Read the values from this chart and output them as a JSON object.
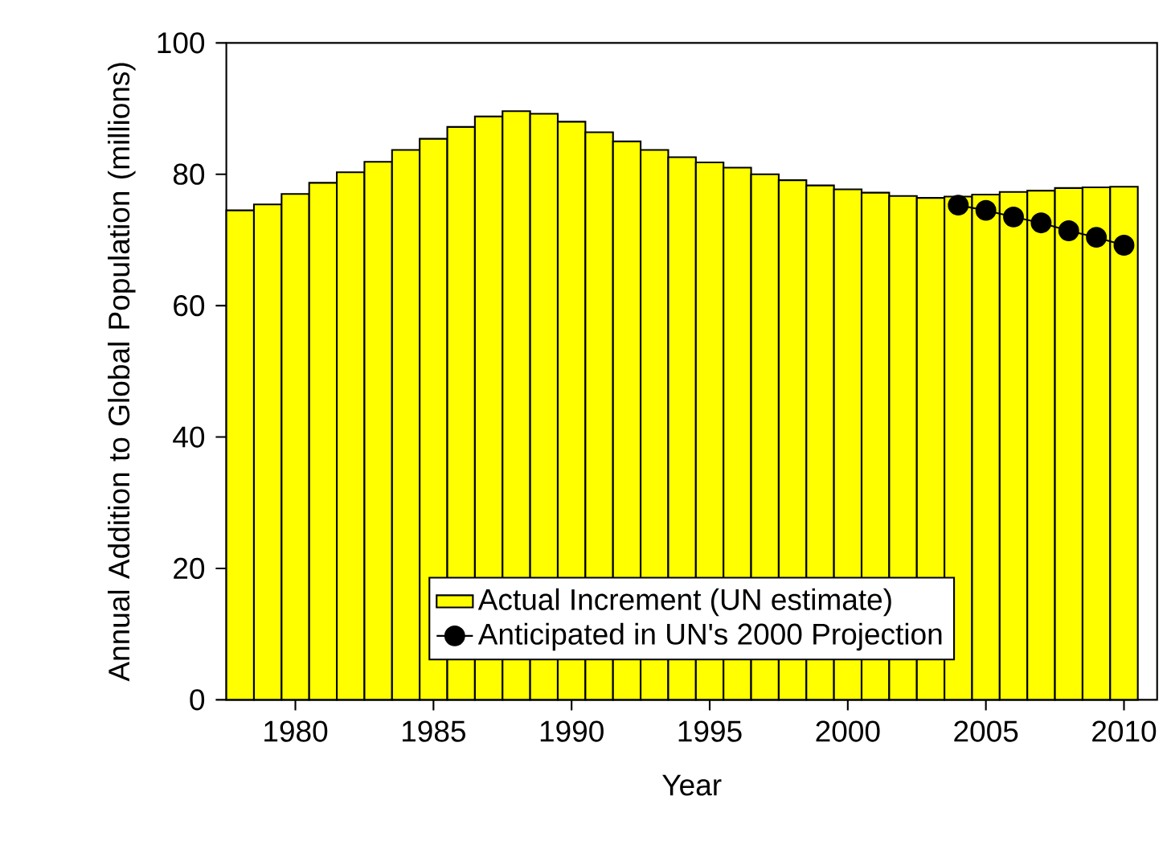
{
  "chart_data": {
    "type": "bar",
    "xlabel": "Year",
    "ylabel": "Annual Addition to Global Population (millions)",
    "x": [
      1978,
      1979,
      1980,
      1981,
      1982,
      1983,
      1984,
      1985,
      1986,
      1987,
      1988,
      1989,
      1990,
      1991,
      1992,
      1993,
      1994,
      1995,
      1996,
      1997,
      1998,
      1999,
      2000,
      2001,
      2002,
      2003,
      2004,
      2005,
      2006,
      2007,
      2008,
      2009,
      2010
    ],
    "series": [
      {
        "name": "Actual Increment (UN estimate)",
        "color": "#ffff00",
        "values": [
          74.5,
          75.4,
          77.0,
          78.7,
          80.3,
          81.9,
          83.7,
          85.4,
          87.2,
          88.8,
          89.6,
          89.2,
          88.0,
          86.4,
          85.0,
          83.7,
          82.6,
          81.8,
          81.0,
          80.0,
          79.1,
          78.3,
          77.7,
          77.2,
          76.7,
          76.4,
          76.6,
          76.9,
          77.3,
          77.5,
          77.9,
          78.0,
          78.1
        ]
      },
      {
        "name": "Anticipated in UN's 2000 Projection",
        "type": "line",
        "color": "#000000",
        "marker": "circle",
        "x": [
          2004,
          2005,
          2006,
          2007,
          2008,
          2009,
          2010
        ],
        "values": [
          75.3,
          74.5,
          73.5,
          72.6,
          71.4,
          70.4,
          69.2
        ]
      }
    ],
    "xlim": [
      1977.5,
      2011.2
    ],
    "ylim": [
      0,
      100
    ],
    "xticks": [
      1980,
      1985,
      1990,
      1995,
      2000,
      2005,
      2010
    ],
    "yticks": [
      0,
      20,
      40,
      60,
      80,
      100
    ],
    "legend": "bottom",
    "grid": false
  }
}
